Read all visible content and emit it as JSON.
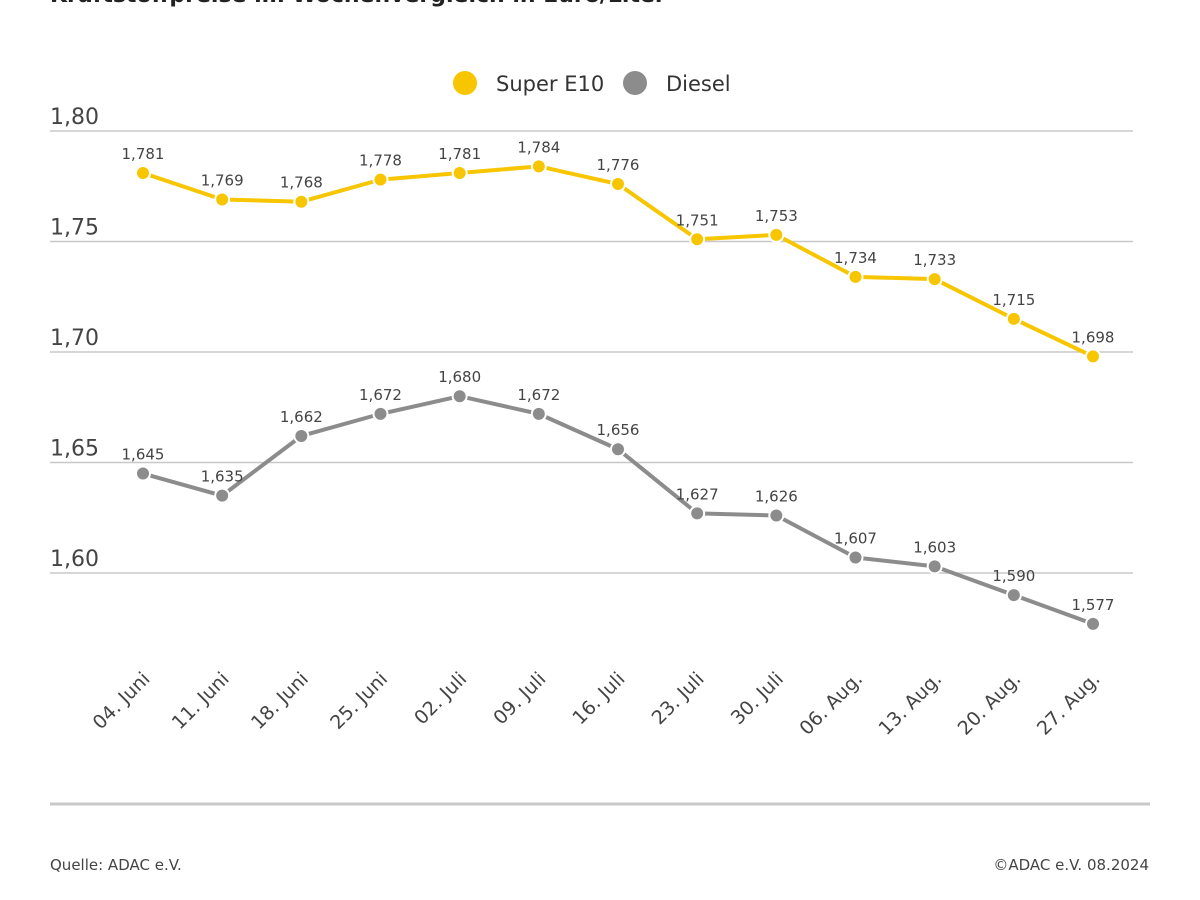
{
  "chart_data": {
    "type": "line",
    "title": "Kraftstoffpreise im Wochenvergleich in Euro/Liter",
    "categories": [
      "04. Juni",
      "11. Juni",
      "18. Juni",
      "25. Juni",
      "02. Juli",
      "09. Juli",
      "16. Juli",
      "23. Juli",
      "30. Juli",
      "06. Aug.",
      "13. Aug.",
      "20. Aug.",
      "27. Aug."
    ],
    "series": [
      {
        "name": "Super E10",
        "color": "#f7c600",
        "values": [
          1.781,
          1.769,
          1.768,
          1.778,
          1.781,
          1.784,
          1.776,
          1.751,
          1.753,
          1.734,
          1.733,
          1.715,
          1.698
        ],
        "labels": [
          "1,781",
          "1,769",
          "1,768",
          "1,778",
          "1,781",
          "1,784",
          "1,776",
          "1,751",
          "1,753",
          "1,734",
          "1,733",
          "1,715",
          "1,698"
        ]
      },
      {
        "name": "Diesel",
        "color": "#8c8c8c",
        "values": [
          1.645,
          1.635,
          1.662,
          1.672,
          1.68,
          1.672,
          1.656,
          1.627,
          1.626,
          1.607,
          1.603,
          1.59,
          1.577
        ],
        "labels": [
          "1,645",
          "1,635",
          "1,662",
          "1,672",
          "1,680",
          "1,672",
          "1,656",
          "1,627",
          "1,626",
          "1,607",
          "1,603",
          "1,590",
          "1,577"
        ]
      }
    ],
    "yticks": [
      1.8,
      1.75,
      1.7,
      1.65,
      1.6
    ],
    "ytick_labels": [
      "1,80",
      "1,75",
      "1,70",
      "1,65",
      "1,60"
    ],
    "ylim": [
      1.6,
      1.8
    ],
    "grid": true,
    "legend": "top-center"
  },
  "footer": {
    "source": "Quelle: ADAC e.V.",
    "copyright": "©ADAC e.V. 08.2024"
  }
}
